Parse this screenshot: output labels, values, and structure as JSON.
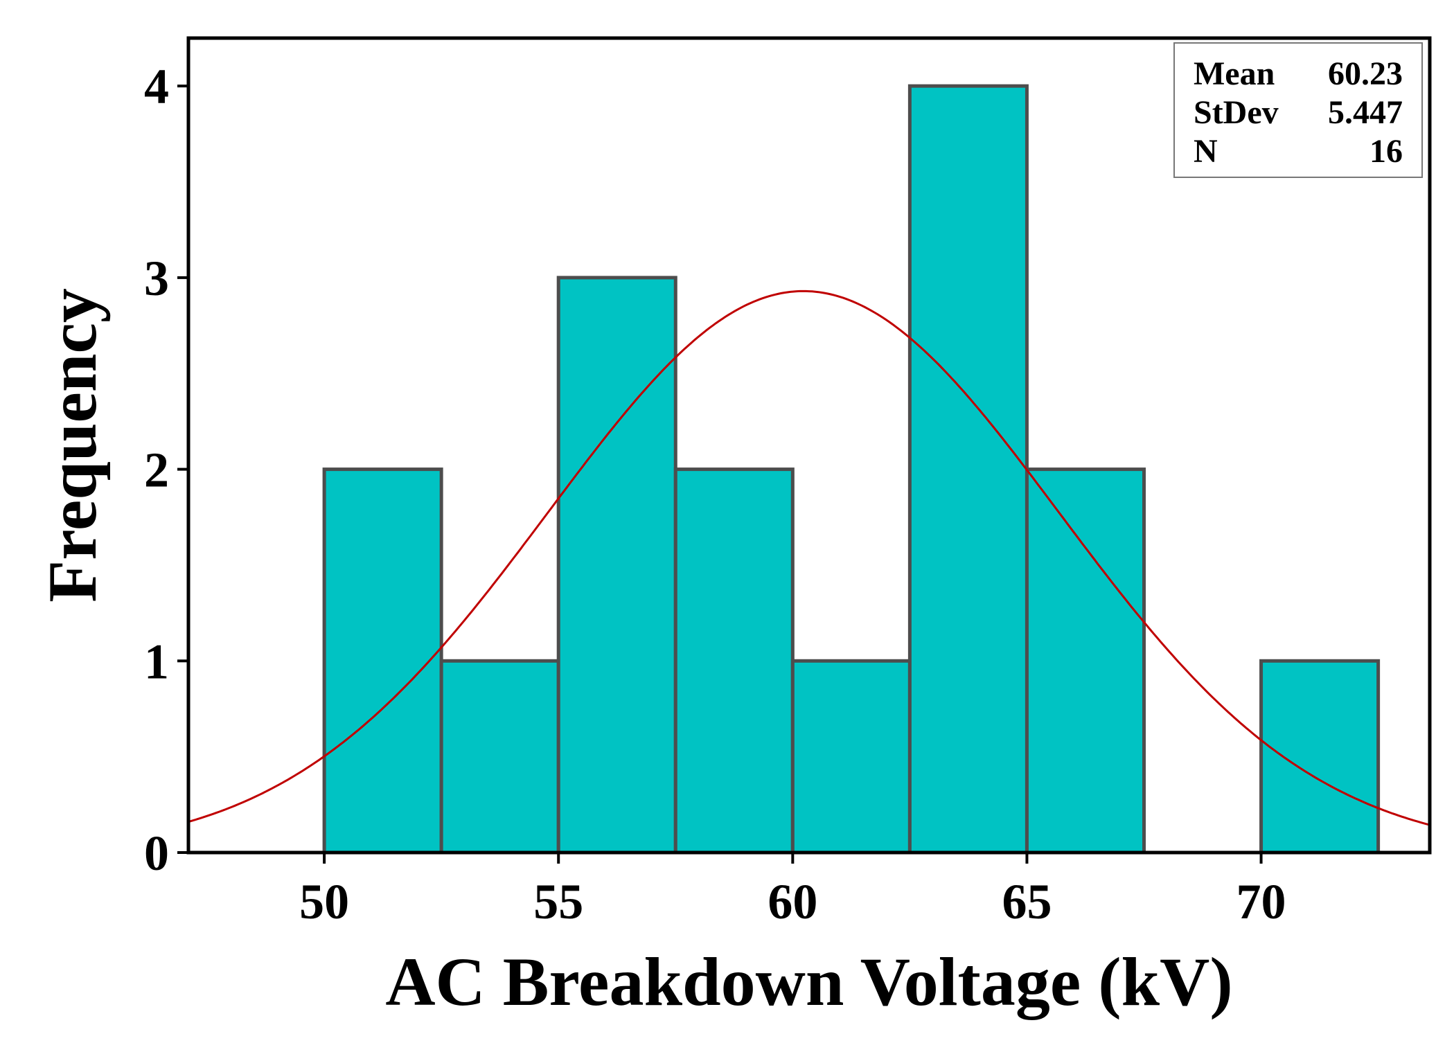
{
  "chart_data": {
    "type": "bar",
    "subtype": "histogram-with-normal-fit",
    "xlabel": "AC Breakdown Voltage (kV)",
    "ylabel": "Frequency",
    "xlim": [
      47.1,
      73.6
    ],
    "ylim": [
      0,
      4.25
    ],
    "x_ticks": [
      50,
      55,
      60,
      65,
      70
    ],
    "x_tick_labels": [
      "50",
      "55",
      "60",
      "65",
      "70"
    ],
    "y_ticks": [
      0,
      1,
      2,
      3,
      4
    ],
    "y_tick_labels": [
      "0",
      "1",
      "2",
      "3",
      "4"
    ],
    "bin_width": 2.5,
    "bins": [
      {
        "start": 50.0,
        "end": 52.5,
        "count": 2
      },
      {
        "start": 52.5,
        "end": 55.0,
        "count": 1
      },
      {
        "start": 55.0,
        "end": 57.5,
        "count": 3
      },
      {
        "start": 57.5,
        "end": 60.0,
        "count": 2
      },
      {
        "start": 60.0,
        "end": 62.5,
        "count": 1
      },
      {
        "start": 62.5,
        "end": 65.0,
        "count": 4
      },
      {
        "start": 65.0,
        "end": 67.5,
        "count": 2
      },
      {
        "start": 67.5,
        "end": 70.0,
        "count": 0
      },
      {
        "start": 70.0,
        "end": 72.5,
        "count": 1
      }
    ],
    "fit": {
      "type": "normal",
      "mean": 60.23,
      "stdev": 5.447,
      "n": 16
    },
    "legend": {
      "position": "top-right",
      "rows": [
        {
          "label": "Mean",
          "value": "60.23"
        },
        {
          "label": "StDev",
          "value": "5.447"
        },
        {
          "label": "N",
          "value": "16"
        }
      ]
    },
    "colors": {
      "bar_fill": "#00c3c3",
      "bar_stroke": "#4d4d4d",
      "curve": "#c00000",
      "axis": "#000000"
    },
    "grid": false
  }
}
